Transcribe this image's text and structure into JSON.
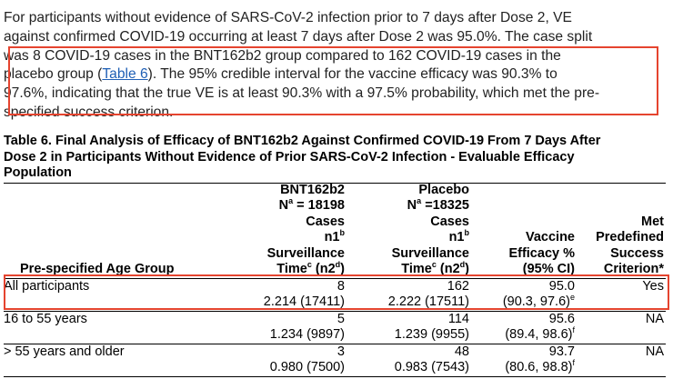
{
  "paragraph": {
    "line1": "For participants without evidence of SARS-CoV-2 infection prior to 7 days after Dose 2, VE",
    "line2": "against confirmed COVID-19 occurring at least 7 days after Dose 2 was 95.0%. The case split",
    "line3": "was 8 COVID-19 cases in the BNT162b2 group compared to 162 COVID-19 cases in the",
    "line4_pre": "placebo group (",
    "line4_link": "Table 6",
    "line4_post": "). The 95% credible interval for the vaccine efficacy was 90.3% to",
    "line5": "97.6%, indicating that the true VE is at least 90.3% with a 97.5% probability, which met the pre-",
    "line6": "specified success criterion."
  },
  "table": {
    "caption_line1": "Table 6. Final Analysis of Efficacy of BNT162b2 Against Confirmed COVID-19 From 7 Days After",
    "caption_line2": "Dose 2 in Participants Without Evidence of Prior SARS-CoV-2 Infection - Evaluable Efficacy",
    "caption_line3": "Population",
    "headers": {
      "col1": "Pre-specified Age Group",
      "bnt_name": "BNT162b2",
      "bnt_na_pre": "N",
      "bnt_na_sup": "a",
      "bnt_na_post": " = 18198",
      "placebo_name": "Placebo",
      "placebo_na_pre": "N",
      "placebo_na_sup": "a",
      "placebo_na_post": " =18325",
      "cases": "Cases",
      "n1_pre": "n1",
      "n1_sup": "b",
      "surveillance": "Surveillance",
      "time_pre": "Time",
      "time_sup_c": "c",
      "time_mid": " (n2",
      "time_sup_d": "d",
      "time_post": ")",
      "ve_line1": "Vaccine",
      "ve_line2": "Efficacy %",
      "ve_line3": "(95% CI)",
      "met_line1": "Met",
      "met_line2": "Predefined",
      "met_line3": "Success",
      "met_line4": "Criterion*"
    },
    "rows": [
      {
        "group": "All participants",
        "bnt_cases": "8",
        "bnt_time": "2.214 (17411)",
        "placebo_cases": "162",
        "placebo_time": "2.222 (17511)",
        "ve": "95.0",
        "ci": "(90.3, 97.6)",
        "ci_sup": "e",
        "met": "Yes"
      },
      {
        "group": "16 to 55 years",
        "bnt_cases": "5",
        "bnt_time": "1.234 (9897)",
        "placebo_cases": "114",
        "placebo_time": "1.239 (9955)",
        "ve": "95.6",
        "ci": "(89.4, 98.6)",
        "ci_sup": "f",
        "met": "NA"
      },
      {
        "group": "> 55 years and older",
        "bnt_cases": "3",
        "bnt_time": "0.980 (7500)",
        "placebo_cases": "48",
        "placebo_time": "0.983 (7543)",
        "ve": "93.7",
        "ci": "(80.6, 98.8)",
        "ci_sup": "f",
        "met": "NA"
      }
    ]
  },
  "annotation": {
    "color": "#e5442f"
  }
}
